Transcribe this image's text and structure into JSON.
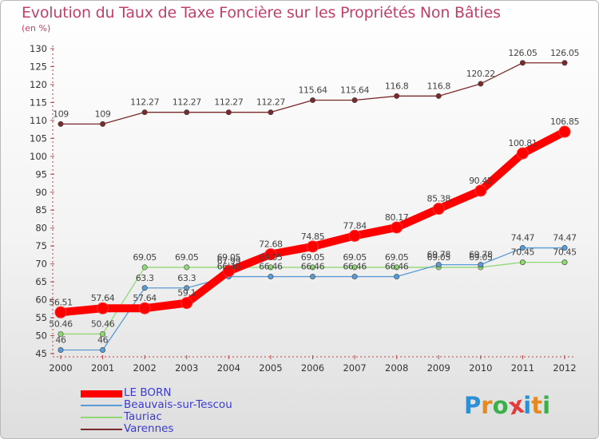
{
  "title": "Evolution du Taux de Taxe Foncière sur les Propriétés Non Bâties",
  "unit": "(en %)",
  "logo": {
    "text": "Proxiti",
    "colors": [
      "#2d8fd6",
      "#e58a1f",
      "#3bb04a",
      "#e23d3d",
      "#2d8fd6",
      "#e58a1f",
      "#3bb04a"
    ]
  },
  "chart_data": {
    "type": "line",
    "x": [
      "2000",
      "2001",
      "2002",
      "2003",
      "2004",
      "2005",
      "2006",
      "2007",
      "2008",
      "2009",
      "2010",
      "2011",
      "2012"
    ],
    "ylim": [
      45,
      130
    ],
    "yticks": [
      45,
      50,
      55,
      60,
      65,
      70,
      75,
      80,
      85,
      90,
      95,
      100,
      105,
      110,
      115,
      120,
      125,
      130
    ],
    "grid": false,
    "legend_position": "bottom-left",
    "series": [
      {
        "name": "Varennes",
        "color": "#7a2a2a",
        "values": [
          109,
          109,
          112.27,
          112.27,
          112.27,
          112.27,
          115.64,
          115.64,
          116.8,
          116.8,
          120.22,
          126.05,
          126.05
        ],
        "labels": [
          "109",
          "109",
          "112.27",
          "112.27",
          "112.27",
          "112.27",
          "115.64",
          "115.64",
          "116.8",
          "116.8",
          "120.22",
          "126.05",
          "126.05"
        ]
      },
      {
        "name": "Tauriac",
        "color": "#8fd873",
        "values": [
          50.46,
          50.46,
          69.05,
          69.05,
          69.05,
          69.05,
          69.05,
          69.05,
          69.05,
          69.05,
          69.05,
          70.45,
          70.45
        ],
        "labels": [
          "50.46",
          "50.46",
          "69.05",
          "69.05",
          "69.05",
          "69.05",
          "69.05",
          "69.05",
          "69.05",
          "69.05",
          "69.05",
          "70.45",
          "70.45"
        ]
      },
      {
        "name": "Beauvais-sur-Tescou",
        "color": "#5b9bd5",
        "values": [
          46,
          46,
          63.3,
          63.3,
          66.46,
          66.46,
          66.46,
          66.46,
          66.46,
          69.78,
          69.78,
          74.47,
          74.47
        ],
        "labels": [
          "46",
          "46",
          "63.3",
          "63.3",
          "66.46",
          "66.46",
          "66.46",
          "66.46",
          "66.46",
          "69.78",
          "69.78",
          "74.47",
          "74.47"
        ]
      },
      {
        "name": "LE BORN",
        "color": "#ff0000",
        "values": [
          56.51,
          57.64,
          57.64,
          59.1,
          67.99,
          72.68,
          74.85,
          77.84,
          80.17,
          85.38,
          90.42,
          100.81,
          106.85
        ],
        "labels": [
          "56.51",
          "57.64",
          "57.64",
          "59.1",
          "67.99",
          "72.68",
          "74.85",
          "77.84",
          "80.17",
          "85.38",
          "90.42",
          "100.81",
          "106.85"
        ]
      }
    ],
    "legend_order": [
      "LE BORN",
      "Beauvais-sur-Tescou",
      "Tauriac",
      "Varennes"
    ]
  }
}
